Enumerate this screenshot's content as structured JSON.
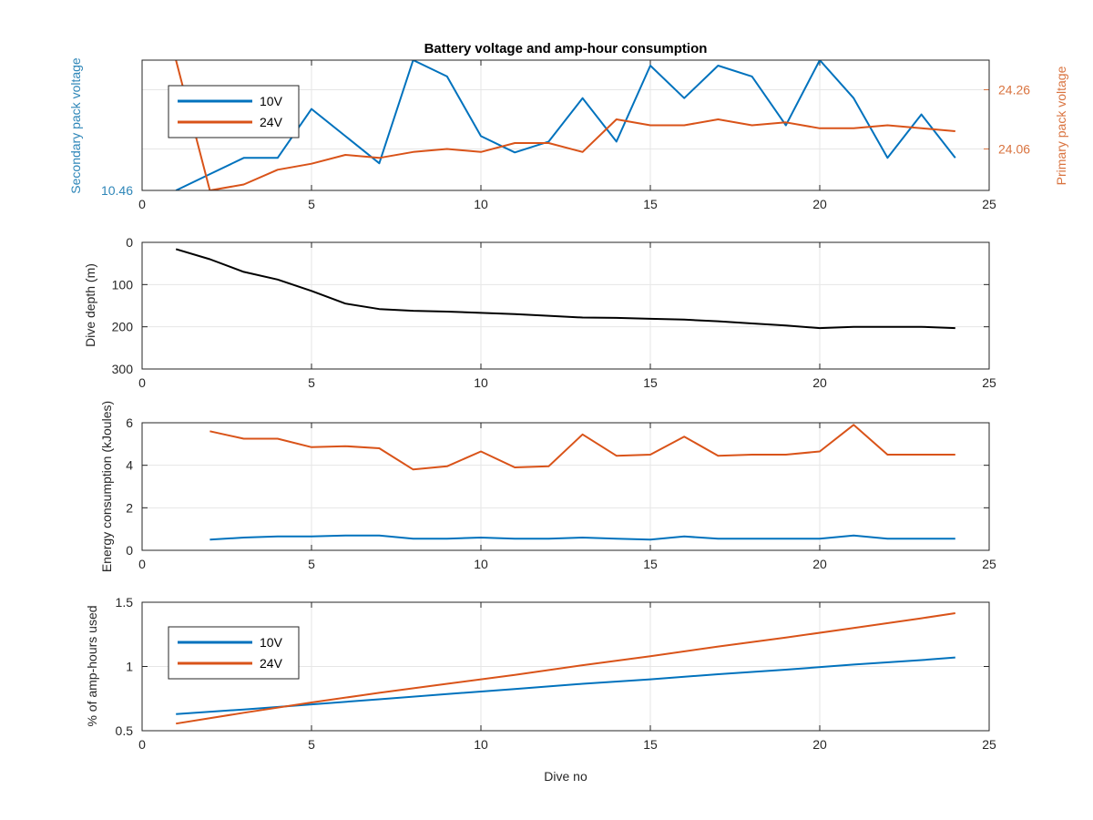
{
  "figure": {
    "title": "Battery voltage and amp-hour consumption",
    "xlabel": "Dive no"
  },
  "colors": {
    "blue": "#0072BD",
    "orange": "#D95319",
    "black": "#000000",
    "grid": "#e6e6e6",
    "axis": "#262626",
    "left_axis_blue": "#2E86B8",
    "right_axis_orange": "#D9733F"
  },
  "chart_data": [
    {
      "type": "line",
      "title": "Battery voltage and amp-hour consumption",
      "xlabel": "",
      "ylabel": "Secondary pack voltage",
      "ylabel_right": "Primary pack voltage",
      "xlim": [
        0,
        25
      ],
      "xticks": [
        "0",
        "5",
        "10",
        "15",
        "20",
        "25"
      ],
      "ylim": [
        10.46,
        10.7
      ],
      "ylim_right": [
        23.92,
        24.36
      ],
      "yticks_left": [
        "10.46"
      ],
      "yticks_right": [
        "24.06",
        "24.26"
      ],
      "grid": true,
      "legend": {
        "placement": "top-left",
        "entries": [
          "10V",
          "24V"
        ]
      },
      "series": [
        {
          "name": "10V",
          "axis": "left",
          "x": [
            1,
            2,
            3,
            4,
            5,
            6,
            7,
            8,
            9,
            10,
            11,
            12,
            13,
            14,
            15,
            16,
            17,
            18,
            19,
            20,
            21,
            22,
            23,
            24
          ],
          "values": [
            10.46,
            10.49,
            10.52,
            10.52,
            10.61,
            10.56,
            10.51,
            10.7,
            10.67,
            10.56,
            10.53,
            10.55,
            10.63,
            10.55,
            10.69,
            10.63,
            10.69,
            10.67,
            10.58,
            10.7,
            10.63,
            10.52,
            10.6,
            10.52
          ]
        },
        {
          "name": "24V",
          "axis": "right",
          "x": [
            1,
            2,
            3,
            4,
            5,
            6,
            7,
            8,
            9,
            10,
            11,
            12,
            13,
            14,
            15,
            16,
            17,
            18,
            19,
            20,
            21,
            22,
            23,
            24
          ],
          "values": [
            24.36,
            23.92,
            23.94,
            23.99,
            24.01,
            24.04,
            24.03,
            24.05,
            24.06,
            24.05,
            24.08,
            24.08,
            24.05,
            24.16,
            24.14,
            24.14,
            24.16,
            24.14,
            24.15,
            24.13,
            24.13,
            24.14,
            24.13,
            24.12
          ]
        }
      ]
    },
    {
      "type": "line",
      "xlabel": "",
      "ylabel": "Dive depth (m)",
      "xlim": [
        0,
        25
      ],
      "xticks": [
        "0",
        "5",
        "10",
        "15",
        "20",
        "25"
      ],
      "ylim": [
        0,
        300
      ],
      "y_reversed": true,
      "yticks": [
        "0",
        "100",
        "200",
        "300"
      ],
      "grid": true,
      "series": [
        {
          "x": [
            1,
            2,
            3,
            4,
            5,
            6,
            7,
            8,
            9,
            10,
            11,
            12,
            13,
            14,
            15,
            16,
            17,
            18,
            19,
            20,
            21,
            22,
            23,
            24
          ],
          "values": [
            16,
            40,
            70,
            88,
            115,
            145,
            158,
            162,
            164,
            167,
            170,
            174,
            178,
            179,
            181,
            183,
            187,
            192,
            197,
            203,
            200,
            200,
            200,
            203
          ]
        }
      ]
    },
    {
      "type": "line",
      "xlabel": "",
      "ylabel": "Energy consumption (kJoules)",
      "xlim": [
        0,
        25
      ],
      "xticks": [
        "0",
        "5",
        "10",
        "15",
        "20",
        "25"
      ],
      "ylim": [
        0,
        6
      ],
      "yticks": [
        "0",
        "2",
        "4",
        "6"
      ],
      "grid": true,
      "series": [
        {
          "x": [
            2,
            3,
            4,
            5,
            6,
            7,
            8,
            9,
            10,
            11,
            12,
            13,
            14,
            15,
            16,
            17,
            18,
            19,
            20,
            21,
            22,
            23,
            24
          ],
          "values": [
            0.5,
            0.6,
            0.65,
            0.65,
            0.7,
            0.7,
            0.55,
            0.55,
            0.6,
            0.55,
            0.55,
            0.6,
            0.55,
            0.5,
            0.65,
            0.55,
            0.55,
            0.55,
            0.55,
            0.7,
            0.55,
            0.55,
            0.55
          ]
        },
        {
          "x": [
            2,
            3,
            4,
            5,
            6,
            7,
            8,
            9,
            10,
            11,
            12,
            13,
            14,
            15,
            16,
            17,
            18,
            19,
            20,
            21,
            22,
            23,
            24
          ],
          "values": [
            5.6,
            5.25,
            5.25,
            4.85,
            4.9,
            4.8,
            3.8,
            3.95,
            4.65,
            3.9,
            3.95,
            5.45,
            4.45,
            4.5,
            5.35,
            4.45,
            4.5,
            4.5,
            4.65,
            5.9,
            4.5,
            4.5,
            4.5
          ]
        }
      ]
    },
    {
      "type": "line",
      "xlabel": "Dive no",
      "ylabel": "% of amp-hours used",
      "xlim": [
        0,
        25
      ],
      "xticks": [
        "0",
        "5",
        "10",
        "15",
        "20",
        "25"
      ],
      "ylim": [
        0.5,
        1.5
      ],
      "yticks": [
        "0.5",
        "1",
        "1.5"
      ],
      "grid": true,
      "legend": {
        "placement": "bottom-left",
        "entries": [
          "10V",
          "24V"
        ]
      },
      "series": [
        {
          "name": "10V",
          "x": [
            1,
            3,
            5,
            7,
            9,
            11,
            13,
            15,
            17,
            19,
            21,
            23,
            24
          ],
          "values": [
            0.63,
            0.665,
            0.705,
            0.745,
            0.785,
            0.825,
            0.865,
            0.9,
            0.94,
            0.975,
            1.015,
            1.05,
            1.07
          ]
        },
        {
          "name": "24V",
          "x": [
            1,
            3,
            5,
            7,
            9,
            11,
            13,
            15,
            17,
            19,
            21,
            23,
            24
          ],
          "values": [
            0.555,
            0.64,
            0.72,
            0.795,
            0.865,
            0.935,
            1.01,
            1.08,
            1.155,
            1.225,
            1.3,
            1.375,
            1.415
          ]
        }
      ]
    }
  ]
}
